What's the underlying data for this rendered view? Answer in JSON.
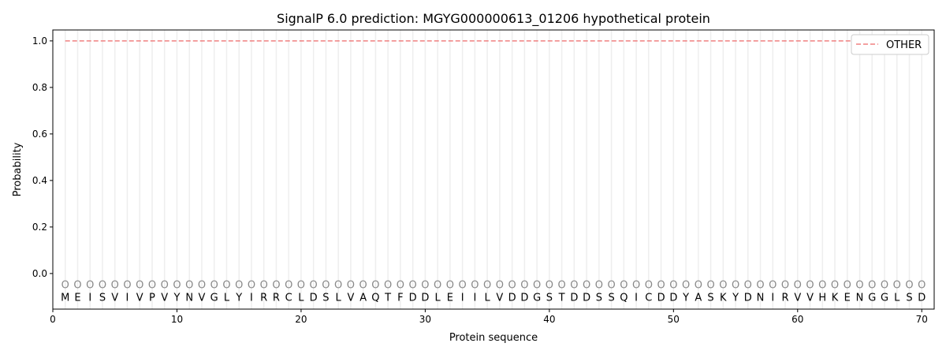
{
  "chart_data": {
    "type": "line",
    "title": "SignalP 6.0 prediction: MGYG000000613_01206 hypothetical protein",
    "xlabel": "Protein sequence",
    "ylabel": "Probability",
    "xlim": [
      0,
      71
    ],
    "ylim": [
      -0.153,
      1.047
    ],
    "xticks": [
      0,
      10,
      20,
      30,
      40,
      50,
      60,
      70
    ],
    "yticks": [
      0.0,
      0.2,
      0.4,
      0.6,
      0.8,
      1.0
    ],
    "ytick_labels": [
      "0.0",
      "0.2",
      "0.4",
      "0.6",
      "0.8",
      "1.0"
    ],
    "grid": "vertical lines at each residue",
    "legend_placement": "top-right",
    "sequence": [
      "M",
      "E",
      "I",
      "S",
      "V",
      "I",
      "V",
      "P",
      "V",
      "Y",
      "N",
      "V",
      "G",
      "L",
      "Y",
      "I",
      "R",
      "R",
      "C",
      "L",
      "D",
      "S",
      "L",
      "V",
      "A",
      "Q",
      "T",
      "F",
      "D",
      "D",
      "L",
      "E",
      "I",
      "I",
      "L",
      "V",
      "D",
      "D",
      "G",
      "S",
      "T",
      "D",
      "D",
      "S",
      "S",
      "Q",
      "I",
      "C",
      "D",
      "D",
      "Y",
      "A",
      "S",
      "K",
      "Y",
      "D",
      "N",
      "I",
      "R",
      "V",
      "V",
      "H",
      "K",
      "E",
      "N",
      "G",
      "G",
      "L",
      "S",
      "D"
    ],
    "predicted_label": "O",
    "series": [
      {
        "name": "OTHER",
        "color": "#f08080",
        "style": "dashed",
        "x_start": 1,
        "x_end": 70,
        "value": 1.0
      }
    ]
  }
}
